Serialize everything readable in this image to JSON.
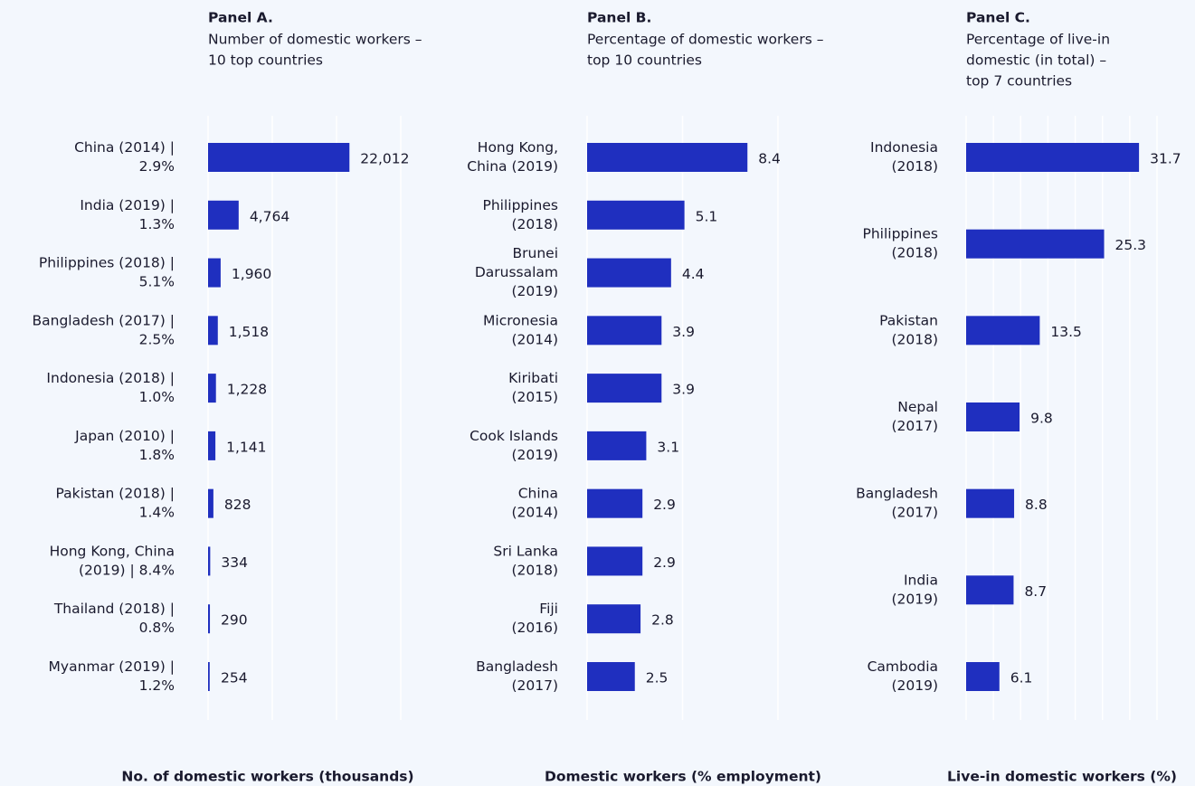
{
  "chart_data": [
    {
      "type": "barh",
      "title": "Panel A.",
      "subtitle": [
        "Number of domestic workers –",
        "10 top countries"
      ],
      "x_label": "No. of domestic workers (thousands)",
      "categories": [
        [
          "China (2014) |",
          "2.9%"
        ],
        [
          "India (2019) |",
          "1.3%"
        ],
        [
          "Philippines (2018) |",
          "5.1%"
        ],
        [
          "Bangladesh (2017) |",
          "2.5%"
        ],
        [
          "Indonesia (2018) |",
          "1.0%"
        ],
        [
          "Japan (2010) |",
          "1.8%"
        ],
        [
          "Pakistan (2018) |",
          "1.4%"
        ],
        [
          "Hong Kong, China",
          "(2019) | 8.4%"
        ],
        [
          "Thailand (2018) |",
          "0.8%"
        ],
        [
          "Myanmar (2019) |",
          "1.2%"
        ]
      ],
      "values": [
        22012,
        4764,
        1960,
        1518,
        1228,
        1141,
        828,
        334,
        290,
        254
      ],
      "value_labels": [
        "22,012",
        "4,764",
        "1,960",
        "1,518",
        "1,228",
        "1,141",
        "828",
        "334",
        "290",
        "254"
      ],
      "color": "#1f2fbf",
      "xlim": [
        0,
        30000
      ],
      "xticks": [
        0,
        10000,
        20000,
        30000
      ],
      "grid": true
    },
    {
      "type": "barh",
      "title": "Panel B.",
      "subtitle": [
        "Percentage of domestic workers –",
        "top 10  countries"
      ],
      "x_label": "Domestic workers (% employment)",
      "categories": [
        [
          "Hong Kong,",
          "China (2019)"
        ],
        [
          "Philippines",
          "(2018)"
        ],
        [
          "Brunei",
          "Darussalam",
          "(2019)"
        ],
        [
          "Micronesia",
          "(2014)"
        ],
        [
          "Kiribati",
          "(2015)"
        ],
        [
          "Cook Islands",
          "(2019)"
        ],
        [
          "China",
          "(2014)"
        ],
        [
          "Sri Lanka",
          "(2018)"
        ],
        [
          "Fiji",
          "(2016)"
        ],
        [
          "Bangladesh",
          "(2017)"
        ]
      ],
      "values": [
        8.4,
        5.1,
        4.4,
        3.9,
        3.9,
        3.1,
        2.9,
        2.9,
        2.8,
        2.5
      ],
      "color": "#1f2fbf",
      "xlim": [
        0,
        10
      ],
      "xticks": [
        0,
        5,
        10
      ],
      "grid": true
    },
    {
      "type": "barh",
      "title": "Panel C.",
      "subtitle": [
        "Percentage of live-in",
        "domestic (in total)  –",
        "top 7 countries"
      ],
      "x_label": "Live-in domestic workers (%)",
      "categories": [
        [
          "Indonesia",
          "(2018)"
        ],
        [
          "Philippines",
          "(2018)"
        ],
        [
          "Pakistan",
          "(2018)"
        ],
        [
          "Nepal",
          "(2017)"
        ],
        [
          "Bangladesh",
          "(2017)"
        ],
        [
          "India",
          "(2019)"
        ],
        [
          "Cambodia",
          "(2019)"
        ]
      ],
      "values": [
        31.7,
        25.3,
        13.5,
        9.8,
        8.8,
        8.7,
        6.1
      ],
      "color": "#1f2fbf",
      "xlim": [
        0,
        35
      ],
      "xticks": [
        0,
        5,
        10,
        15,
        20,
        25,
        30,
        35
      ],
      "grid": true
    }
  ]
}
